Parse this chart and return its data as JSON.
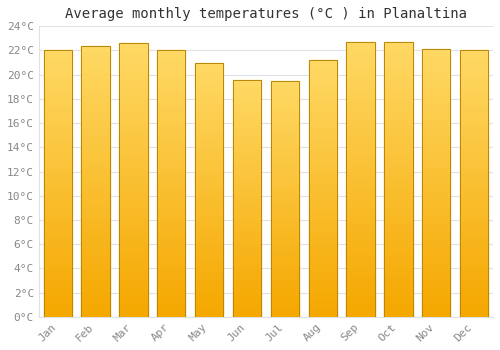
{
  "title": "Average monthly temperatures (°C ) in Planaltina",
  "months": [
    "Jan",
    "Feb",
    "Mar",
    "Apr",
    "May",
    "Jun",
    "Jul",
    "Aug",
    "Sep",
    "Oct",
    "Nov",
    "Dec"
  ],
  "values": [
    22.0,
    22.4,
    22.6,
    22.0,
    21.0,
    19.6,
    19.5,
    21.2,
    22.7,
    22.7,
    22.1,
    22.0
  ],
  "ylim": [
    0,
    24
  ],
  "yticks": [
    0,
    2,
    4,
    6,
    8,
    10,
    12,
    14,
    16,
    18,
    20,
    22,
    24
  ],
  "bar_color_bottom": "#F5A800",
  "bar_color_top": "#FFD966",
  "bar_edge_color": "#B8860B",
  "background_color": "#FFFFFF",
  "plot_bg_color": "#FFFFFF",
  "grid_color": "#E0E0E8",
  "title_fontsize": 10,
  "tick_fontsize": 8,
  "title_font": "monospace",
  "tick_font": "monospace",
  "tick_color": "#888888",
  "bar_width": 0.75,
  "gradient_steps": 50
}
